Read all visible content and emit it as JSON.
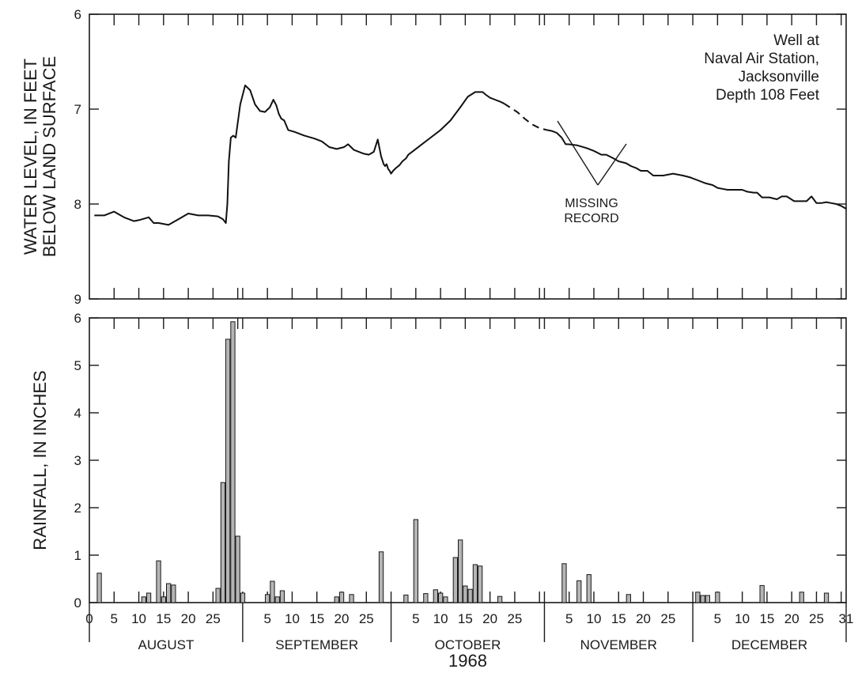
{
  "chart_data": [
    {
      "type": "line",
      "ylabel_lines": [
        "WATER LEVEL, IN FEET",
        "BELOW LAND SURFACE"
      ],
      "ylim": [
        9,
        6
      ],
      "y_inverted": true,
      "y_ticks": [
        "6",
        "7",
        "8",
        "9"
      ],
      "annotation_lines": [
        "Well at",
        "Naval Air Station,",
        "Jacksonville",
        "Depth 108 Feet"
      ],
      "missing_label_lines": [
        "MISSING",
        "RECORD"
      ],
      "series": [
        {
          "x": [
            1,
            3,
            5,
            7,
            9,
            10,
            12,
            13,
            14,
            16,
            18,
            20,
            22,
            24,
            26,
            27,
            27.6,
            27.9,
            28.2,
            28.6,
            29.1,
            29.6,
            30.5,
            31.5,
            32.5,
            33.5,
            34.5,
            35.5,
            36.5,
            37.2,
            37.8,
            38.3,
            38.8,
            39.4,
            40.2,
            41.5,
            43.5,
            45.5,
            47,
            48.5,
            50,
            51.5,
            52.3,
            53.5,
            55.5,
            56.5,
            57.5,
            58.3,
            59,
            59.5,
            59.8,
            60.1,
            60.4,
            60.7,
            61,
            61.4,
            62,
            62.7,
            63.3,
            64,
            64.5,
            65.5,
            67,
            69,
            71,
            73,
            75,
            76.5,
            78,
            79.5,
            80.2,
            81,
            82,
            83,
            83.8
          ],
          "y": [
            8.12,
            8.12,
            8.08,
            8.14,
            8.18,
            8.17,
            8.14,
            8.2,
            8.2,
            8.22,
            8.16,
            8.1,
            8.12,
            8.12,
            8.13,
            8.16,
            8.2,
            8.0,
            7.55,
            7.3,
            7.28,
            7.3,
            6.95,
            6.75,
            6.8,
            6.95,
            7.02,
            7.03,
            6.98,
            6.9,
            6.96,
            7.05,
            7.1,
            7.12,
            7.22,
            7.24,
            7.28,
            7.31,
            7.34,
            7.4,
            7.42,
            7.4,
            7.37,
            7.43,
            7.47,
            7.48,
            7.45,
            7.32,
            7.5,
            7.58,
            7.6,
            7.58,
            7.63,
            7.65,
            7.68,
            7.65,
            7.62,
            7.59,
            7.55,
            7.52,
            7.48,
            7.44,
            7.38,
            7.3,
            7.22,
            7.12,
            6.98,
            6.87,
            6.82,
            6.82,
            6.85,
            6.88,
            6.9,
            6.92,
            6.94
          ]
        },
        {
          "x": [
            83.8,
            85,
            86.5,
            88,
            89.5,
            91,
            92.5
          ],
          "y": [
            6.94,
            6.98,
            7.03,
            7.1,
            7.16,
            7.2,
            7.22
          ],
          "missing": true
        },
        {
          "x": [
            92.5,
            93.5,
            94.5,
            95.5,
            96.3,
            96.8
          ],
          "y": [
            7.22,
            7.23,
            7.25,
            7.3,
            7.37,
            7.37
          ]
        },
        {
          "x": [
            96.8,
            98.5,
            100.5,
            102
          ],
          "y": [
            7.37,
            7.38,
            7.41,
            7.44
          ]
        },
        {
          "x": [
            102,
            103.5,
            104.5,
            106,
            107,
            108.5,
            109.5,
            110.5,
            111.5,
            112.8,
            114,
            116,
            118,
            120,
            121.5,
            123,
            124.5,
            126,
            127,
            128,
            129,
            130.5,
            132,
            133,
            134.3,
            135,
            136,
            137.5,
            139,
            140,
            141,
            142.5,
            144,
            145,
            146,
            147,
            148,
            149,
            150,
            151,
            152,
            153
          ],
          "y": [
            7.44,
            7.48,
            7.48,
            7.52,
            7.55,
            7.57,
            7.6,
            7.62,
            7.65,
            7.65,
            7.7,
            7.7,
            7.68,
            7.7,
            7.72,
            7.75,
            7.78,
            7.8,
            7.83,
            7.84,
            7.85,
            7.85,
            7.85,
            7.87,
            7.88,
            7.88,
            7.93,
            7.93,
            7.95,
            7.92,
            7.92,
            7.97,
            7.97,
            7.97,
            7.92,
            7.99,
            7.99,
            7.98,
            7.99,
            8.0,
            8.02,
            8.05
          ]
        }
      ]
    },
    {
      "type": "bar",
      "ylabel": "RAINFALL, IN INCHES",
      "xlabel": "1968",
      "ylim": [
        0,
        6
      ],
      "y_ticks": [
        "0",
        "1",
        "2",
        "3",
        "4",
        "5",
        "6"
      ],
      "x_tick_labels": [
        "0",
        "5",
        "10",
        "15",
        "20",
        "25",
        "5",
        "10",
        "15",
        "20",
        "25",
        "5",
        "10",
        "15",
        "20",
        "25",
        "5",
        "10",
        "15",
        "20",
        "25",
        "5",
        "10",
        "15",
        "20",
        "25",
        "31"
      ],
      "months": [
        "AUGUST",
        "SEPTEMBER",
        "OCTOBER",
        "NOVEMBER",
        "DECEMBER"
      ],
      "x": [
        2,
        11,
        12,
        14,
        15,
        16,
        17,
        26,
        27,
        28,
        29,
        30,
        31,
        36,
        37,
        38,
        39,
        50,
        51,
        53,
        59,
        64,
        66,
        68,
        70,
        71,
        72,
        74,
        75,
        76,
        77,
        78,
        79,
        83,
        96,
        99,
        101,
        109,
        123,
        124,
        125,
        127,
        136,
        144,
        149
      ],
      "values": [
        0.62,
        0.12,
        0.2,
        0.88,
        0.12,
        0.4,
        0.37,
        0.3,
        2.53,
        5.55,
        5.92,
        1.4,
        0.2,
        0.17,
        0.45,
        0.12,
        0.25,
        0.12,
        0.22,
        0.17,
        1.07,
        0.16,
        1.75,
        0.19,
        0.27,
        0.2,
        0.12,
        0.95,
        1.32,
        0.35,
        0.28,
        0.8,
        0.77,
        0.13,
        0.82,
        0.46,
        0.59,
        0.17,
        0.22,
        0.15,
        0.15,
        0.22,
        0.36,
        0.22,
        0.2
      ]
    }
  ]
}
